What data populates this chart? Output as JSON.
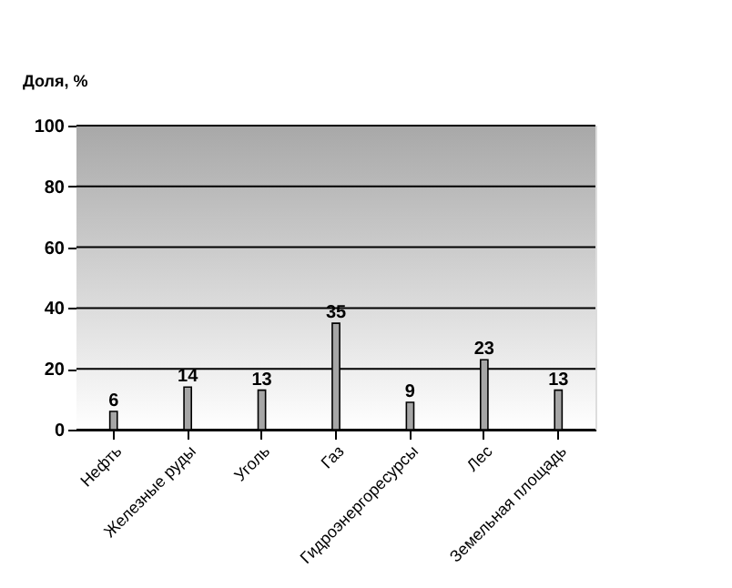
{
  "chart_data": {
    "type": "bar",
    "ylabel": "Доля, %",
    "categories": [
      "Нефть",
      "Железные руды",
      "Уголь",
      "Газ",
      "Гидроэнергоресурсы",
      "Лес",
      "Земельная площадь"
    ],
    "values": [
      6,
      14,
      13,
      35,
      9,
      23,
      13
    ],
    "color": "#a6a6a6",
    "ylim": [
      0,
      100
    ],
    "yticks": [
      0,
      20,
      40,
      60,
      80,
      100
    ],
    "grid": "y",
    "data_labels": true
  }
}
